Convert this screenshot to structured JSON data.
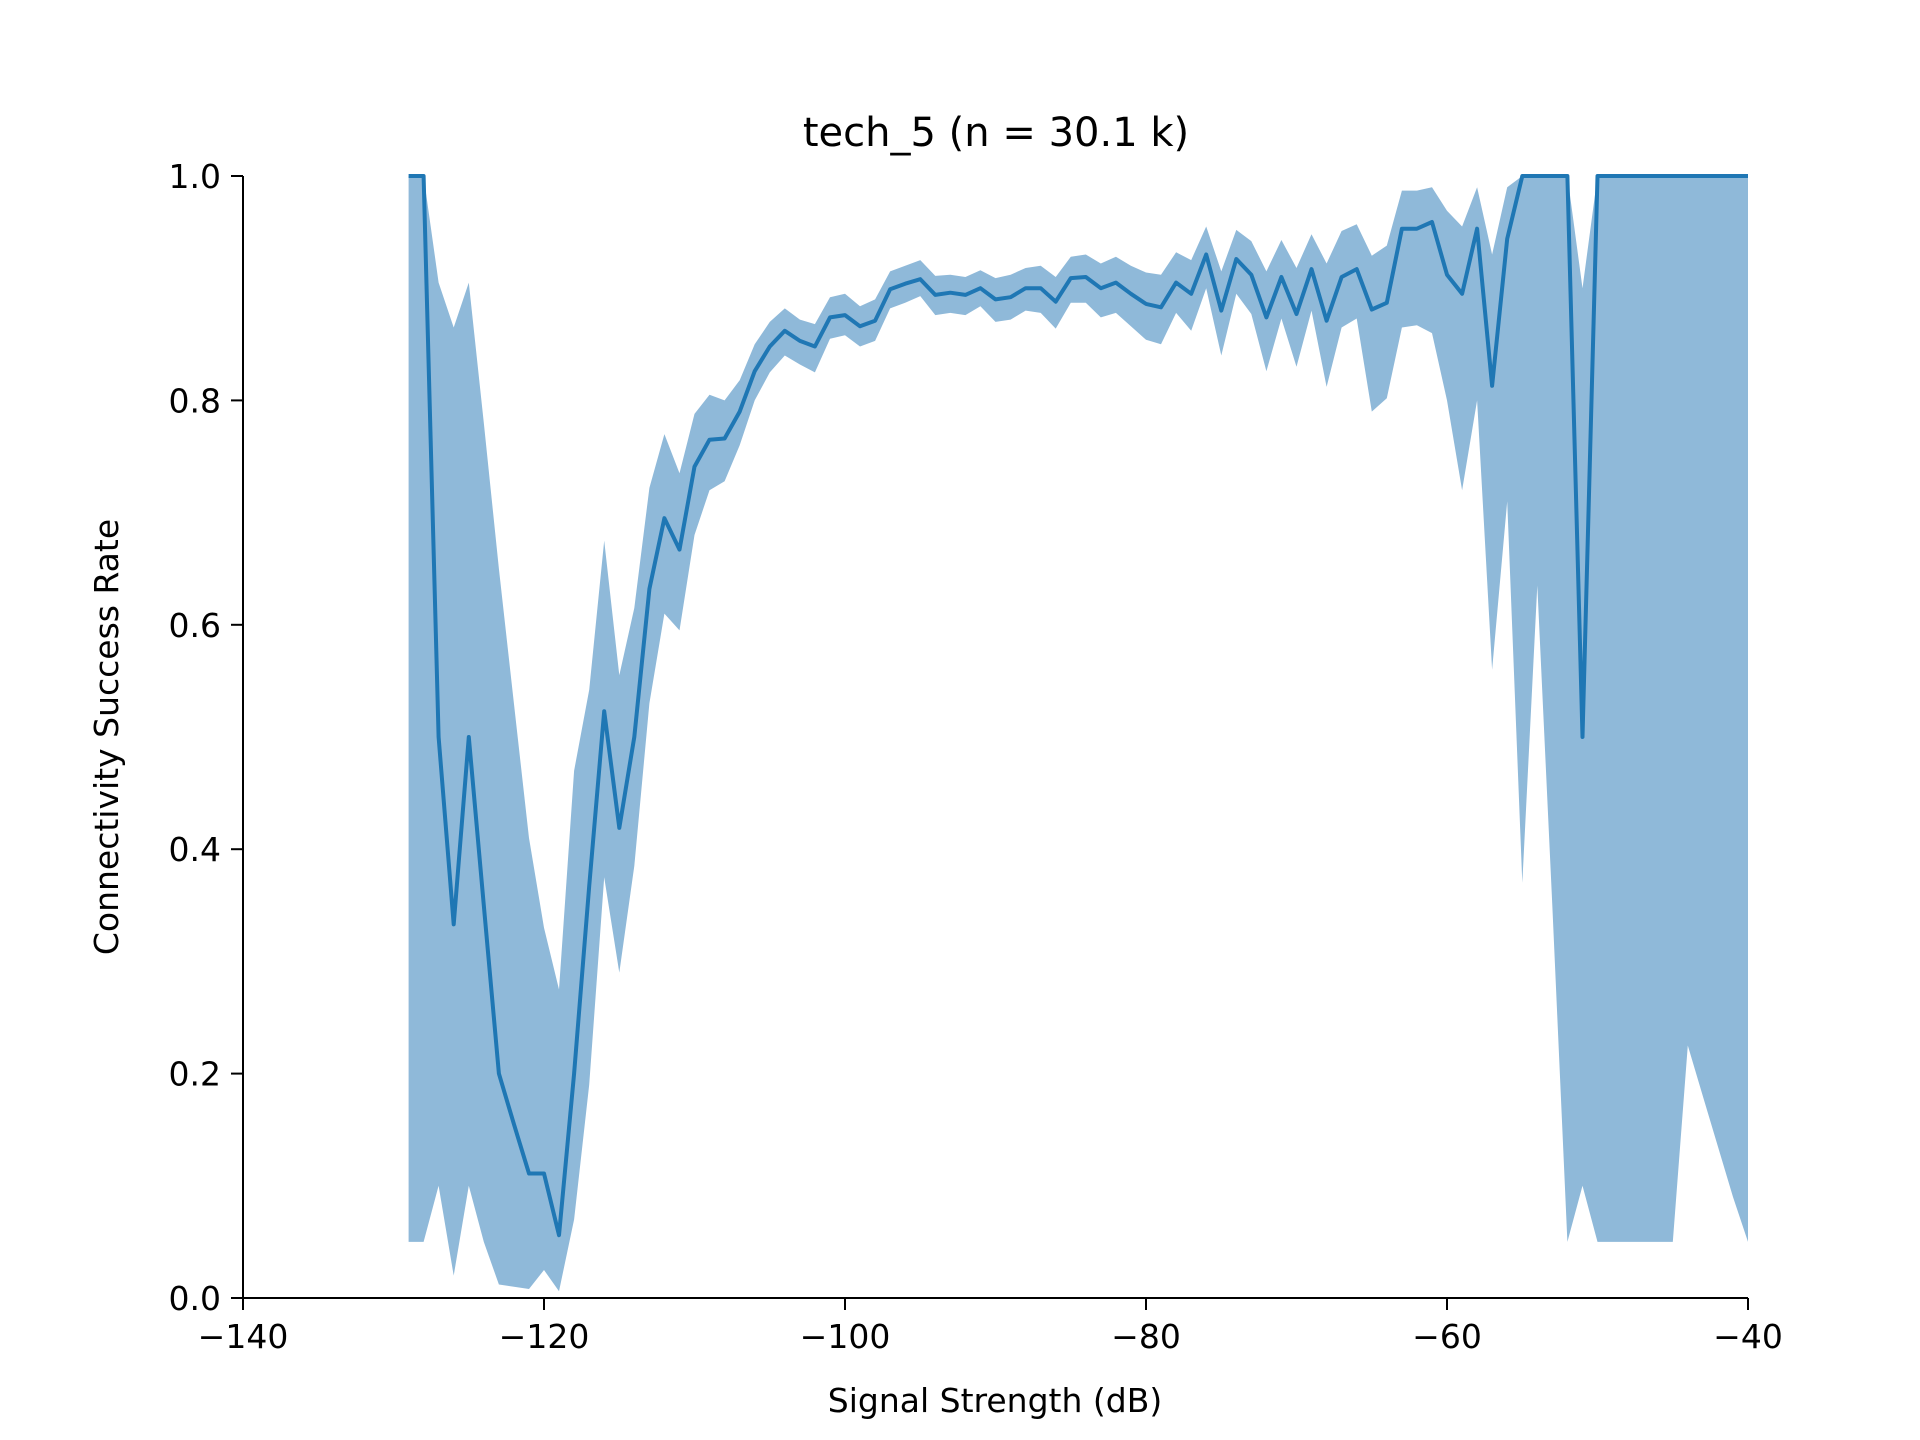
{
  "chart_data": {
    "type": "line",
    "title": "tech_5 (n = 30.1 k)",
    "xlabel": "Signal Strength (dB)",
    "ylabel": "Connectivity Success Rate",
    "xlim": [
      -140,
      -40
    ],
    "ylim": [
      0,
      1
    ],
    "xticks": [
      -140,
      -120,
      -100,
      -80,
      -60,
      -40
    ],
    "yticks": [
      0.0,
      0.2,
      0.4,
      0.6,
      0.8,
      1.0
    ],
    "xtick_labels": [
      "−140",
      "−120",
      "−100",
      "−80",
      "−60",
      "−40"
    ],
    "ytick_labels": [
      "0.0",
      "0.2",
      "0.4",
      "0.6",
      "0.8",
      "1.0"
    ],
    "grid": false,
    "colors": {
      "line": "#1f77b4",
      "band": "#8fb9d9"
    },
    "series": [
      {
        "x": [
          -129,
          -128,
          -127,
          -126,
          -125,
          -124,
          -123,
          -122,
          -121,
          -120,
          -119,
          -118,
          -117,
          -116,
          -115,
          -114,
          -113,
          -112,
          -111,
          -110,
          -109,
          -108,
          -107,
          -106,
          -105,
          -104,
          -103,
          -102,
          -101,
          -100,
          -99,
          -98,
          -97,
          -96,
          -95,
          -94,
          -93,
          -92,
          -91,
          -90,
          -89,
          -88,
          -87,
          -86,
          -85,
          -84,
          -83,
          -82,
          -81,
          -80,
          -79,
          -78,
          -77,
          -76,
          -75,
          -74,
          -73,
          -72,
          -71,
          -70,
          -69,
          -68,
          -67,
          -66,
          -65,
          -64,
          -63,
          -62,
          -61,
          -60,
          -59,
          -58,
          -57,
          -56,
          -55,
          -54,
          -53,
          -52,
          -51,
          -50,
          -49,
          -48,
          -47,
          -46,
          -45,
          -44,
          -43,
          -42,
          -41,
          -40
        ],
        "y": [
          1.0,
          1.0,
          0.5,
          0.333,
          0.5,
          0.35,
          0.2,
          0.155,
          0.111,
          0.111,
          0.056,
          0.2,
          0.367,
          0.523,
          0.419,
          0.5,
          0.632,
          0.695,
          0.667,
          0.741,
          0.765,
          0.766,
          0.79,
          0.826,
          0.848,
          0.862,
          0.853,
          0.848,
          0.874,
          0.876,
          0.866,
          0.871,
          0.899,
          0.904,
          0.908,
          0.894,
          0.896,
          0.894,
          0.9,
          0.89,
          0.892,
          0.9,
          0.9,
          0.888,
          0.909,
          0.91,
          0.9,
          0.905,
          0.895,
          0.886,
          0.883,
          0.905,
          0.895,
          0.93,
          0.88,
          0.926,
          0.912,
          0.874,
          0.91,
          0.877,
          0.917,
          0.871,
          0.91,
          0.917,
          0.881,
          0.887,
          0.953,
          0.953,
          0.959,
          0.912,
          0.895,
          0.953,
          0.813,
          0.944,
          1.0,
          1.0,
          1.0,
          1.0,
          0.5,
          1.0,
          1.0,
          1.0,
          1.0,
          1.0,
          1.0,
          1.0,
          1.0,
          1.0,
          1.0,
          1.0
        ],
        "lower": [
          0.05,
          0.05,
          0.1,
          0.02,
          0.1,
          0.05,
          0.012,
          0.01,
          0.008,
          0.025,
          0.006,
          0.07,
          0.19,
          0.375,
          0.29,
          0.385,
          0.53,
          0.61,
          0.595,
          0.68,
          0.72,
          0.728,
          0.76,
          0.8,
          0.825,
          0.84,
          0.832,
          0.825,
          0.855,
          0.858,
          0.848,
          0.853,
          0.882,
          0.887,
          0.893,
          0.876,
          0.878,
          0.876,
          0.884,
          0.87,
          0.872,
          0.88,
          0.878,
          0.864,
          0.887,
          0.887,
          0.874,
          0.878,
          0.866,
          0.854,
          0.85,
          0.878,
          0.862,
          0.9,
          0.84,
          0.895,
          0.877,
          0.826,
          0.873,
          0.83,
          0.88,
          0.812,
          0.865,
          0.873,
          0.79,
          0.802,
          0.865,
          0.867,
          0.86,
          0.8,
          0.72,
          0.8,
          0.56,
          0.71,
          0.37,
          0.635,
          0.35,
          0.05,
          0.1,
          0.05,
          0.05,
          0.05,
          0.05,
          0.05,
          0.05,
          0.225,
          0.18,
          0.135,
          0.09,
          0.05
        ],
        "upper": [
          1.0,
          1.0,
          0.905,
          0.865,
          0.905,
          0.78,
          0.65,
          0.53,
          0.41,
          0.33,
          0.275,
          0.47,
          0.542,
          0.675,
          0.555,
          0.615,
          0.722,
          0.77,
          0.735,
          0.788,
          0.805,
          0.8,
          0.818,
          0.85,
          0.87,
          0.882,
          0.872,
          0.868,
          0.892,
          0.895,
          0.884,
          0.89,
          0.915,
          0.92,
          0.925,
          0.911,
          0.912,
          0.91,
          0.916,
          0.909,
          0.912,
          0.918,
          0.92,
          0.91,
          0.928,
          0.93,
          0.922,
          0.928,
          0.92,
          0.914,
          0.912,
          0.932,
          0.925,
          0.955,
          0.915,
          0.952,
          0.942,
          0.915,
          0.943,
          0.918,
          0.948,
          0.922,
          0.951,
          0.957,
          0.929,
          0.938,
          0.987,
          0.987,
          0.99,
          0.969,
          0.955,
          0.99,
          0.93,
          0.99,
          1.0,
          1.0,
          1.0,
          1.0,
          0.9,
          1.0,
          1.0,
          1.0,
          1.0,
          1.0,
          1.0,
          1.0,
          1.0,
          1.0,
          1.0,
          1.0
        ]
      }
    ]
  }
}
